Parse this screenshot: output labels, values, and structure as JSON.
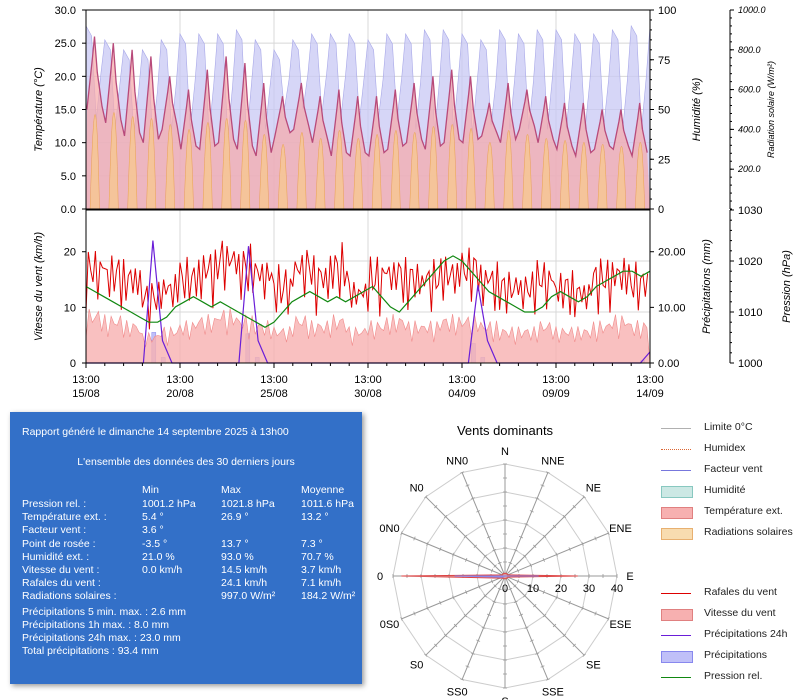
{
  "chart_data": [
    {
      "type": "line",
      "ylabel_left": "Température (°C)",
      "ylabel_right1": "Humidité (%)",
      "ylabel_right2": "Radiation solaire (W/m²)",
      "ylim_left": [
        0,
        30
      ],
      "yticks_left": [
        "0.0",
        "5.0",
        "10.0",
        "15.0",
        "20.0",
        "25.0",
        "30.0"
      ],
      "ylim_right1": [
        0,
        100
      ],
      "yticks_right1": [
        "0",
        "25",
        "50",
        "75",
        "100"
      ],
      "ylim_right2": [
        0,
        1000
      ],
      "yticks_right2": [
        "200.0",
        "400.0",
        "600.0",
        "800.0",
        "1000.0"
      ],
      "x_days": 30,
      "series": [
        {
          "name": "Température ext.",
          "color": "#b84a7a",
          "fill": "#f7a8a8",
          "daily_min": [
            14,
            12,
            10,
            9,
            11,
            8,
            8,
            9,
            8,
            7,
            10,
            11,
            9,
            7,
            7,
            7,
            8,
            9,
            8,
            9,
            9,
            10,
            9,
            11,
            9,
            8,
            7,
            8,
            8,
            7
          ],
          "daily_max": [
            26,
            25,
            24,
            23,
            20,
            18,
            21,
            23,
            22,
            19,
            17,
            19,
            17,
            18,
            17,
            17,
            18,
            19,
            20,
            21,
            20,
            16,
            19,
            18,
            17,
            16,
            16,
            15,
            15,
            16
          ]
        },
        {
          "name": "Humidité",
          "color": "#a8a8e8",
          "fill": "#cce8e4",
          "daily_min": [
            45,
            40,
            38,
            38,
            40,
            40,
            38,
            36,
            35,
            40,
            50,
            50,
            48,
            45,
            45,
            45,
            45,
            40,
            38,
            40,
            38,
            42,
            40,
            40,
            40,
            40,
            40,
            42,
            40,
            40
          ],
          "daily_max": [
            92,
            85,
            80,
            80,
            85,
            88,
            88,
            88,
            90,
            85,
            80,
            85,
            88,
            88,
            88,
            85,
            88,
            88,
            90,
            90,
            88,
            85,
            90,
            88,
            90,
            90,
            88,
            88,
            90,
            92
          ]
        },
        {
          "name": "Radiations solaires",
          "color": "#f0c070",
          "daily_max": [
            800,
            820,
            780,
            760,
            700,
            650,
            720,
            760,
            740,
            600,
            500,
            620,
            560,
            640,
            560,
            600,
            640,
            620,
            680,
            700,
            660,
            520,
            640,
            600,
            560,
            540,
            520,
            500,
            480,
            520
          ]
        }
      ]
    },
    {
      "type": "line",
      "ylabel_left": "Vitesse du vent (km/h)",
      "ylabel_right1": "Précipitations (mm)",
      "ylabel_right2": "Pression (hPa)",
      "ylim_left": [
        0,
        27.5
      ],
      "yticks_left": [
        "0",
        "10",
        "20"
      ],
      "ylim_right1": [
        0,
        27.5
      ],
      "yticks_right1": [
        "0.00",
        "10.00",
        "20.00"
      ],
      "ylim_right2": [
        1000,
        1030
      ],
      "yticks_right2": [
        "1000",
        "1010",
        "1020",
        "1030"
      ],
      "x_ticks": [
        {
          "time": "13:00",
          "date": "15/08"
        },
        {
          "time": "13:00",
          "date": "20/08"
        },
        {
          "time": "13:00",
          "date": "25/08"
        },
        {
          "time": "13:00",
          "date": "30/08"
        },
        {
          "time": "13:00",
          "date": "04/09"
        },
        {
          "time": "13:00",
          "date": "09/09"
        },
        {
          "time": "13:00",
          "date": "14/09"
        }
      ],
      "series": [
        {
          "name": "Rafales du vent",
          "color": "#dd0000",
          "daily_max": [
            22,
            21,
            20,
            16,
            18,
            20,
            22,
            24,
            22,
            21,
            18,
            22,
            20,
            22,
            17,
            20,
            21,
            20,
            20,
            21,
            22,
            20,
            18,
            18,
            20,
            18,
            17,
            20,
            21,
            19
          ]
        },
        {
          "name": "Vitesse du vent",
          "color": "#f08a8a",
          "fill": "#f7b0b0",
          "daily_avg": [
            9,
            8,
            7,
            5,
            6,
            7,
            8,
            9,
            8,
            7,
            6,
            8,
            7,
            8,
            6,
            7,
            8,
            7,
            7,
            8,
            8,
            7,
            6,
            6,
            7,
            6,
            6,
            7,
            8,
            7
          ]
        },
        {
          "name": "Précipitations 24h",
          "color": "#6a1ed8",
          "values": [
            0,
            0,
            0,
            0,
            0,
            0,
            0,
            22,
            4,
            0,
            0,
            0,
            0,
            0,
            0,
            0,
            0,
            21,
            4,
            0,
            0,
            0,
            0,
            0,
            0,
            0,
            0,
            0,
            0,
            0,
            0,
            0,
            0,
            0,
            0,
            0,
            0,
            0,
            0,
            0,
            0,
            14,
            4,
            0,
            0,
            0,
            0,
            0,
            0,
            0,
            0,
            0,
            0,
            0,
            0,
            0,
            0,
            0,
            0,
            2
          ]
        },
        {
          "name": "Précipitations",
          "color": "#8888ee",
          "fill": "#c0c0f8"
        },
        {
          "name": "Pression rel.",
          "color": "#118811",
          "values": [
            1015,
            1014,
            1013,
            1012,
            1011,
            1010,
            1009,
            1008,
            1008,
            1009,
            1011,
            1012,
            1013,
            1012,
            1011,
            1012,
            1011,
            1010,
            1009,
            1008,
            1007,
            1008,
            1010,
            1012,
            1013,
            1014,
            1013,
            1012,
            1013,
            1012,
            1013,
            1014,
            1015,
            1013,
            1011,
            1010,
            1012,
            1014,
            1016,
            1018,
            1020,
            1021,
            1020,
            1018,
            1016,
            1014,
            1013,
            1012,
            1011,
            1010,
            1010,
            1011,
            1013,
            1014,
            1013,
            1012,
            1013,
            1015,
            1016,
            1017,
            1018,
            1018,
            1017,
            1018
          ]
        }
      ]
    },
    {
      "type": "radar",
      "title": "Vents dominants",
      "directions": [
        "N",
        "NNE",
        "NE",
        "ENE",
        "E",
        "ESE",
        "SE",
        "SSE",
        "S",
        "SS0",
        "S0",
        "0S0",
        "0",
        "0N0",
        "N0",
        "NN0"
      ],
      "rlim": [
        0,
        40
      ],
      "rticks": [
        "0",
        "10",
        "20",
        "30",
        "40"
      ],
      "series": [
        {
          "name": "Rafales du vent",
          "color": "#dd4444",
          "fill": "#f7a0a0",
          "values": [
            1,
            1,
            1,
            1,
            26,
            1,
            1,
            1,
            1,
            1,
            1,
            2,
            37,
            1,
            1,
            1
          ]
        },
        {
          "name": "Vitesse du vent",
          "color": "#8888ee",
          "fill": "#b8b8f0",
          "values": [
            0,
            0,
            0,
            0,
            12,
            0,
            0,
            0,
            0,
            0,
            0,
            1,
            18,
            0,
            0,
            0
          ]
        }
      ]
    }
  ],
  "report": {
    "title": "Rapport généré le dimanche 14 septembre 2025 à 13h00",
    "subtitle": "L'ensemble des données des 30 derniers jours",
    "headers": {
      "min": "Min",
      "max": "Max",
      "avg": "Moyenne"
    },
    "rows": [
      {
        "label": "Pression rel. :",
        "min": "1001.2 hPa",
        "max": "1021.8 hPa",
        "avg": "1011.6 hPa"
      },
      {
        "label": "Température ext. :",
        "min": "5.4 °",
        "max": "26.9 °",
        "avg": "13.2 °"
      },
      {
        "label": "Facteur vent :",
        "min": "3.6 °",
        "max": "",
        "avg": ""
      },
      {
        "label": "Point de rosée :",
        "min": "-3.5 °",
        "max": "13.7 °",
        "avg": "7.3 °"
      },
      {
        "label": "Humidité ext. :",
        "min": "21.0 %",
        "max": "93.0 %",
        "avg": "70.7 %"
      },
      {
        "label": "Vitesse du vent :",
        "min": "0.0 km/h",
        "max": "14.5 km/h",
        "avg": "3.7 km/h"
      },
      {
        "label": "Rafales du vent :",
        "min": "",
        "max": "24.1 km/h",
        "avg": "7.1 km/h"
      },
      {
        "label": "Radiations solaires :",
        "min": "",
        "max": "997.0 W/m²",
        "avg": "184.2 W/m²"
      }
    ],
    "extra": [
      "Précipitations 5 min. max. : 2.6 mm",
      "Précipitations 1h max. : 8.0 mm",
      "Précipitations 24h max. : 23.0 mm",
      "Total précipitations : 93.4 mm"
    ]
  },
  "legend": {
    "items": [
      {
        "label": "Limite 0°C",
        "style": "line",
        "color": "#b0b0b0"
      },
      {
        "label": "Humidex",
        "style": "dotted",
        "color": "#dd6633"
      },
      {
        "label": "Facteur vent",
        "style": "line",
        "color": "#7777dd"
      },
      {
        "label": "Humidité",
        "style": "box",
        "color": "#cce8e4",
        "border": "#88c8c0"
      },
      {
        "label": "Température ext.",
        "style": "box",
        "color": "#f7b0b0",
        "border": "#e08080"
      },
      {
        "label": "Radiations solaires",
        "style": "box",
        "color": "#f8dcb0",
        "border": "#e8b070"
      },
      {
        "label": "Rafales du vent",
        "style": "line",
        "color": "#dd0000"
      },
      {
        "label": "Vitesse du vent",
        "style": "box",
        "color": "#f7b0b0",
        "border": "#e08080"
      },
      {
        "label": "Précipitations 24h",
        "style": "line",
        "color": "#6a1ed8"
      },
      {
        "label": "Précipitations",
        "style": "box",
        "color": "#c0c0f8",
        "border": "#8888ee"
      },
      {
        "label": "Pression rel.",
        "style": "line",
        "color": "#118811"
      }
    ]
  }
}
